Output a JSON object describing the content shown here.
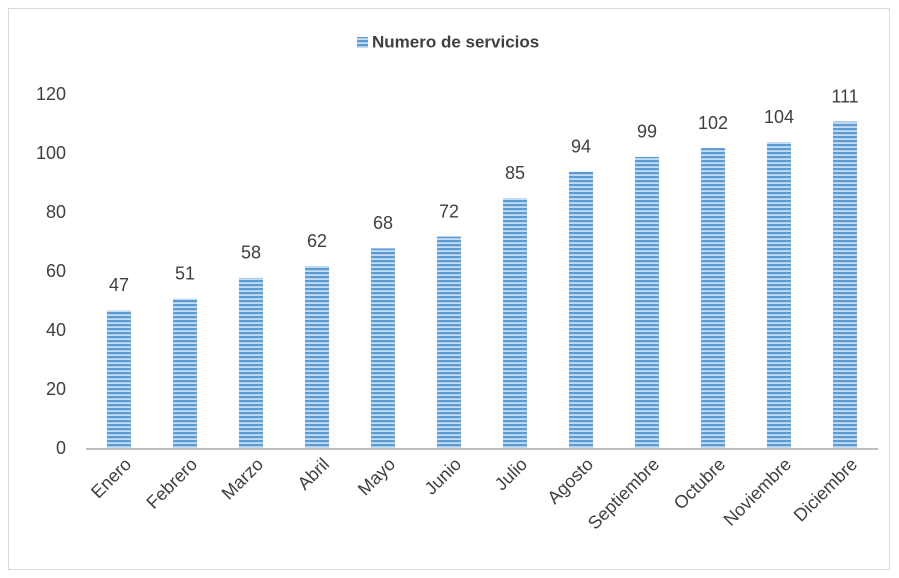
{
  "chart_data": {
    "type": "bar",
    "categories": [
      "Enero",
      "Febrero",
      "Marzo",
      "Abril",
      "Mayo",
      "Junio",
      "Julio",
      "Agosto",
      "Septiembre",
      "Octubre",
      "Noviembre",
      "Diciembre"
    ],
    "series": [
      {
        "name": "Numero de servicios",
        "color": "#5b9bd5",
        "values": [
          47,
          51,
          58,
          62,
          68,
          72,
          85,
          94,
          99,
          102,
          104,
          111
        ]
      }
    ],
    "ylim": [
      0,
      120
    ],
    "yticks": [
      0,
      20,
      40,
      60,
      80,
      100,
      120
    ],
    "grid": false,
    "legend": "top"
  }
}
